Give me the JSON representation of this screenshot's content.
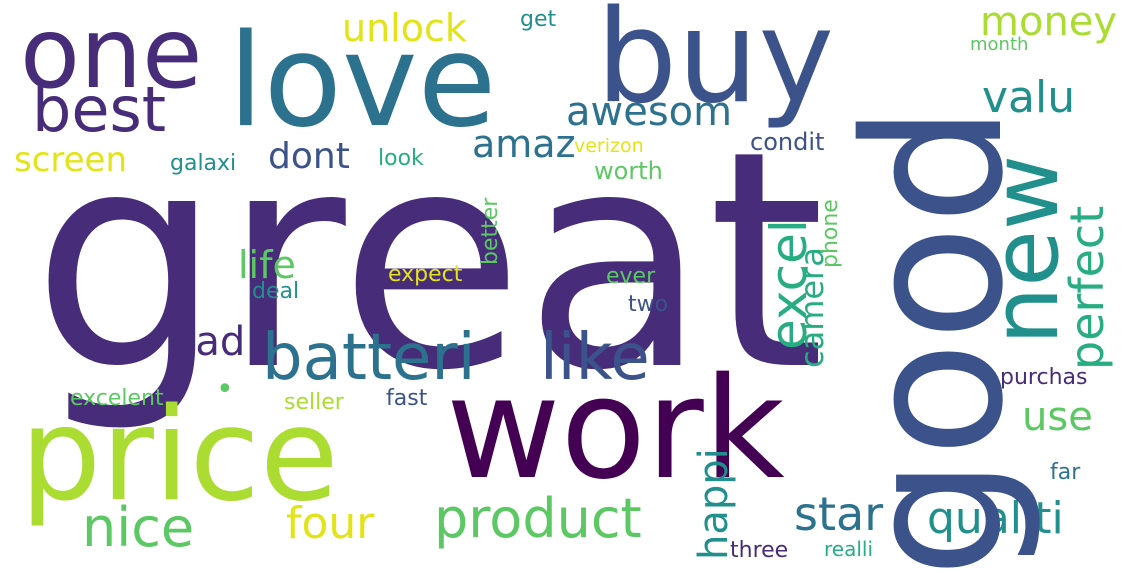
{
  "colors": {
    "background": "#ffffff",
    "dark_purple": "#440154",
    "purple": "#472c7a",
    "indigo": "#3b528b",
    "blue": "#2c728e",
    "teal": "#21908d",
    "green": "#27ad81",
    "lime": "#5cc863",
    "yellow_green": "#aadc32",
    "yellow": "#e2e418"
  },
  "words": {
    "great": "great",
    "love": "love",
    "buy": "buy",
    "one": "one",
    "best": "best",
    "good": "good",
    "work": "work",
    "price": "price",
    "new": "new",
    "batteri": "batteri",
    "like": "like",
    "product": "product",
    "nice": "nice",
    "four": "four",
    "star": "star",
    "qualiti": "qualiti",
    "unlock": "unlock",
    "awesom": "awesom",
    "valu": "valu",
    "money": "money",
    "amaz": "amaz",
    "dont": "dont",
    "screen": "screen",
    "excel": "excel",
    "perfect": "perfect",
    "life": "life",
    "bad": "bad",
    "use": "use",
    "camera": "camera",
    "phone": "phone",
    "happi": "happi",
    "worth": "worth",
    "condit": "condit",
    "look": "look",
    "galaxi": "galaxi",
    "verizon": "verizon",
    "get": "get",
    "month": "month",
    "expect": "expect",
    "ever": "ever",
    "deal": "deal",
    "two": "two",
    "better": "better",
    "purchas": "purchas",
    "excelent": "excelent",
    "seller": "seller",
    "fast": "fast",
    "far": "far",
    "three": "three",
    "realli": "realli",
    "dot": "•"
  }
}
